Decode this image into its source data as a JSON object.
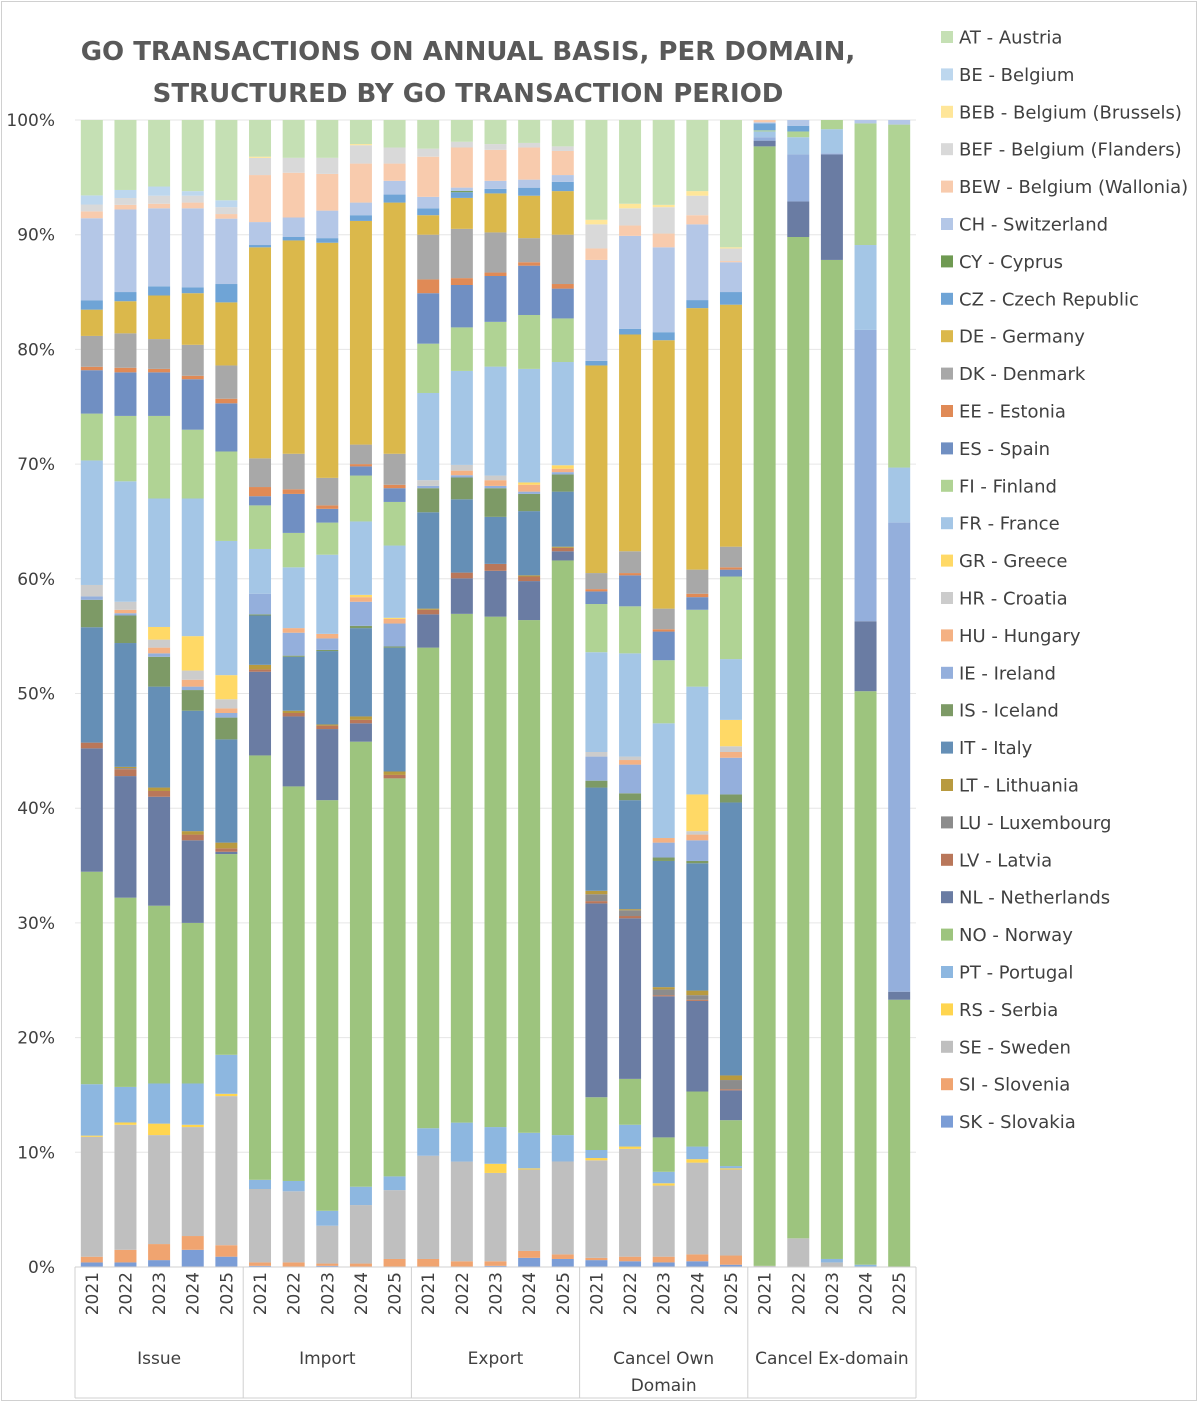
{
  "chart_data": {
    "type": "bar",
    "stacked": "100%",
    "title": [
      "GO TRANSACTIONS ON ANNUAL BASIS, PER DOMAIN,",
      "STRUCTURED BY GO TRANSACTION PERIOD"
    ],
    "groups": [
      "Issue",
      "Import",
      "Export",
      "Cancel Own Domain",
      "Cancel Ex-domain"
    ],
    "years": [
      "2021",
      "2022",
      "2023",
      "2024",
      "2025"
    ],
    "y_ticks": [
      "0%",
      "10%",
      "20%",
      "30%",
      "40%",
      "50%",
      "60%",
      "70%",
      "80%",
      "90%",
      "100%"
    ],
    "ylim": [
      0,
      100
    ],
    "grid": true,
    "legend_position": "right",
    "series": [
      {
        "name": "SK - Slovakia",
        "color": "#7b9dd6",
        "values": [
          0.4,
          0.4,
          0.6,
          1.5,
          0.9,
          0.1,
          0,
          0.1,
          0,
          0,
          0,
          0,
          0.1,
          0.8,
          0.7,
          0.6,
          0.5,
          0.4,
          0.5,
          0.2,
          0,
          0,
          0,
          0,
          0
        ]
      },
      {
        "name": "SI - Slovenia",
        "color": "#f0a470",
        "values": [
          0.5,
          1.1,
          1.4,
          1.2,
          1.0,
          0.3,
          0.4,
          0.2,
          0.3,
          0.7,
          0.7,
          0.5,
          0.4,
          0.6,
          0.4,
          0.2,
          0.4,
          0.5,
          0.6,
          0.8,
          0,
          0,
          0,
          0,
          0
        ]
      },
      {
        "name": "SE - Sweden",
        "color": "#bfbfbf",
        "values": [
          10.5,
          10.9,
          9.5,
          9.5,
          13.0,
          6.4,
          6.2,
          3.3,
          5.1,
          6.0,
          9.0,
          8.7,
          7.7,
          7.1,
          8.1,
          8.5,
          9.4,
          6.2,
          8.0,
          7.5,
          0.1,
          2.5,
          0.4,
          0,
          0
        ]
      },
      {
        "name": "RS - Serbia",
        "color": "#ffd54f",
        "values": [
          0.1,
          0.2,
          1.0,
          0.2,
          0.2,
          0,
          0,
          0,
          0,
          0,
          0,
          0,
          0.8,
          0.1,
          0,
          0.2,
          0.2,
          0.2,
          0.3,
          0.1,
          0,
          0,
          0,
          0,
          0
        ]
      },
      {
        "name": "PT - Portugal",
        "color": "#8db7e0",
        "values": [
          4.5,
          3.1,
          3.5,
          3.6,
          3.4,
          0.8,
          0.9,
          1.3,
          1.6,
          1.2,
          2.4,
          3.4,
          3.2,
          3.1,
          2.3,
          0.7,
          1.9,
          1.0,
          1.1,
          0.2,
          0,
          0,
          0.3,
          0.2,
          0
        ]
      },
      {
        "name": "NO - Norway",
        "color": "#9dc47e",
        "values": [
          18.6,
          16.5,
          15.5,
          14.0,
          17.5,
          37.0,
          34.4,
          35.8,
          38.8,
          34.7,
          41.9,
          44.4,
          44.5,
          44.7,
          50.1,
          4.6,
          4.0,
          3.0,
          4.8,
          4.0,
          97.6,
          87.3,
          87.1,
          50.0,
          23.3
        ]
      },
      {
        "name": "NL - Netherlands",
        "color": "#6a7ca3",
        "values": [
          10.8,
          10.6,
          9.5,
          7.2,
          0.2,
          7.3,
          6.1,
          6.2,
          1.6,
          0,
          2.9,
          3.1,
          4.0,
          3.4,
          0.8,
          16.9,
          14.0,
          12.3,
          7.9,
          2.6,
          0.5,
          3.1,
          9.2,
          6.1,
          0.7
        ]
      },
      {
        "name": "LV - Latvia",
        "color": "#b9775a",
        "values": [
          0.5,
          0.6,
          0.5,
          0.5,
          0.3,
          0.2,
          0.3,
          0.3,
          0.3,
          0.3,
          0.4,
          0.5,
          0.6,
          0.4,
          0.3,
          0.2,
          0.2,
          0.1,
          0.1,
          0.1,
          0,
          0,
          0,
          0,
          0
        ]
      },
      {
        "name": "LU - Luxembourg",
        "color": "#8c8c8c",
        "values": [
          0,
          0.1,
          0,
          0,
          0,
          0,
          0,
          0,
          0,
          0,
          0,
          0,
          0,
          0,
          0,
          0.6,
          0.5,
          0.5,
          0.4,
          0.8,
          0,
          0,
          0,
          0,
          0
        ]
      },
      {
        "name": "LT - Lithuania",
        "color": "#b89a3f",
        "values": [
          0,
          0.1,
          0.3,
          0.3,
          0.5,
          0.4,
          0.2,
          0.1,
          0.3,
          0.3,
          0.1,
          0,
          0,
          0.1,
          0.1,
          0.3,
          0.1,
          0.2,
          0.4,
          0.4,
          0,
          0,
          0,
          0,
          0
        ]
      },
      {
        "name": "IT - Italy",
        "color": "#658fb6",
        "values": [
          10.1,
          10.8,
          8.8,
          10.5,
          9.0,
          4.3,
          4.7,
          6.4,
          7.7,
          10.8,
          8.4,
          6.4,
          4.1,
          5.6,
          4.8,
          9.0,
          9.5,
          11.0,
          11.1,
          23.8,
          0,
          0,
          0,
          0,
          0
        ]
      },
      {
        "name": "IS - Iceland",
        "color": "#7d9a66",
        "values": [
          2.4,
          2.4,
          2.6,
          1.8,
          1.9,
          0.1,
          0.1,
          0.1,
          0.2,
          0.1,
          2.1,
          1.9,
          2.5,
          1.5,
          1.5,
          0.6,
          0.6,
          0.3,
          0.2,
          0.7,
          0,
          0,
          0,
          0,
          0
        ]
      },
      {
        "name": "IE - Ireland",
        "color": "#94afdc",
        "values": [
          0.3,
          0.2,
          0.3,
          0.3,
          0.4,
          1.8,
          2.0,
          1.0,
          2.1,
          2.0,
          0.2,
          0.2,
          0.2,
          0.2,
          0.2,
          2.1,
          2.5,
          1.3,
          1.8,
          3.2,
          0.3,
          4.1,
          0.1,
          25.4,
          40.9
        ]
      },
      {
        "name": "HU - Hungary",
        "color": "#f4b183",
        "values": [
          0,
          0.3,
          0.5,
          0.6,
          0.4,
          0,
          0.4,
          0.4,
          0.4,
          0.4,
          0,
          0.4,
          0.5,
          0.6,
          0.3,
          0,
          0.4,
          0.4,
          0.5,
          0.5,
          0,
          0,
          0,
          0,
          0
        ]
      },
      {
        "name": "HR - Croatia",
        "color": "#cccccc",
        "values": [
          1.0,
          0.7,
          0.7,
          0.8,
          0.8,
          0,
          0,
          0,
          0,
          0,
          0.5,
          0.5,
          0.4,
          0,
          0,
          0.4,
          0.3,
          0,
          0.3,
          0.5,
          0,
          0,
          0,
          0,
          0
        ]
      },
      {
        "name": "GR - Greece",
        "color": "#ffd966",
        "values": [
          0,
          0,
          1.1,
          3.0,
          2.1,
          0,
          0,
          0,
          0.2,
          0.1,
          0,
          0,
          0,
          0.2,
          0.3,
          0,
          0,
          0,
          3.2,
          2.3,
          0,
          0,
          0,
          0,
          0
        ]
      },
      {
        "name": "FR - France",
        "color": "#a4c6e6",
        "values": [
          10.9,
          10.5,
          11.2,
          12.0,
          11.7,
          3.9,
          5.3,
          6.9,
          6.4,
          6.3,
          7.6,
          8.2,
          9.5,
          9.9,
          9.0,
          8.7,
          9.0,
          10.0,
          9.4,
          5.3,
          0.5,
          1.5,
          2.1,
          7.4,
          4.8
        ]
      },
      {
        "name": "FI - Finland",
        "color": "#b0d394",
        "values": [
          4.1,
          5.7,
          7.2,
          6.0,
          7.8,
          3.8,
          3.0,
          2.8,
          4.0,
          3.8,
          4.3,
          3.8,
          3.9,
          4.7,
          3.8,
          4.2,
          4.1,
          5.5,
          6.7,
          7.2,
          0.1,
          0.5,
          0.8,
          10.6,
          29.9
        ]
      },
      {
        "name": "ES - Spain",
        "color": "#708fc2",
        "values": [
          3.8,
          3.8,
          3.8,
          4.4,
          4.2,
          0.8,
          3.4,
          1.2,
          0.8,
          1.2,
          4.4,
          3.7,
          4.0,
          4.3,
          2.6,
          1.1,
          2.7,
          2.5,
          1.1,
          0.6,
          0,
          0,
          0,
          0,
          0
        ]
      },
      {
        "name": "EE - Estonia",
        "color": "#e08a56",
        "values": [
          0.3,
          0.4,
          0.3,
          0.3,
          0.4,
          0.8,
          0.4,
          0.3,
          0.2,
          0.3,
          1.2,
          0.6,
          0.3,
          0.3,
          0.4,
          0.2,
          0.2,
          0.2,
          0.3,
          0.2,
          0,
          0,
          0,
          0,
          0
        ]
      },
      {
        "name": "DK - Denmark",
        "color": "#a8a8a8",
        "values": [
          2.7,
          3.0,
          2.6,
          2.7,
          2.9,
          2.5,
          3.1,
          2.4,
          1.7,
          2.7,
          3.9,
          4.3,
          3.5,
          2.1,
          4.3,
          1.4,
          1.9,
          1.8,
          2.1,
          1.8,
          0,
          0,
          0,
          0,
          0
        ]
      },
      {
        "name": "DE - Germany",
        "color": "#dbb84b",
        "values": [
          2.3,
          2.8,
          3.8,
          4.5,
          5.5,
          18.4,
          18.6,
          20.5,
          19.5,
          21.9,
          1.7,
          2.7,
          3.4,
          3.7,
          3.8,
          18.1,
          18.9,
          23.4,
          22.8,
          21.1,
          0,
          0,
          0,
          0,
          0
        ]
      },
      {
        "name": "CZ - Czech Republic",
        "color": "#6fa4d6",
        "values": [
          0.8,
          0.8,
          0.8,
          0.5,
          1.6,
          0.2,
          0.3,
          0.4,
          0.5,
          0.7,
          0.6,
          0.5,
          0.4,
          0.7,
          0.8,
          0.4,
          0.5,
          0.7,
          0.7,
          1.1,
          0.6,
          0.5,
          0,
          0,
          0
        ]
      },
      {
        "name": "CY - Cyprus",
        "color": "#6f9a52",
        "values": [
          0,
          0,
          0,
          0,
          0,
          0,
          0,
          0,
          0,
          0,
          0,
          0.1,
          0,
          0,
          0,
          0,
          0,
          0,
          0,
          0,
          0,
          0,
          0,
          0,
          0
        ]
      },
      {
        "name": "CH - Switzerland",
        "color": "#b4c7e7",
        "values": [
          7.2,
          7.2,
          6.8,
          6.9,
          5.7,
          2.0,
          1.7,
          2.4,
          1.1,
          1.2,
          1.0,
          0.3,
          0.7,
          0.7,
          0.6,
          8.8,
          8.1,
          7.4,
          6.6,
          2.6,
          0.1,
          0.5,
          0,
          0.3,
          0.4
        ]
      },
      {
        "name": "BEW - Belgium (Wallonia)",
        "color": "#f8cbad",
        "values": [
          0.6,
          0.4,
          0.4,
          0.5,
          0.4,
          4.1,
          3.9,
          3.2,
          3.4,
          1.5,
          3.5,
          3.5,
          2.7,
          2.8,
          2.1,
          1.0,
          0.9,
          1.2,
          0.8,
          0.1,
          0.2,
          0,
          0,
          0,
          0
        ]
      },
      {
        "name": "BEF - Belgium (Flanders)",
        "color": "#d9d9d9",
        "values": [
          0.6,
          0.6,
          0.7,
          0.6,
          0.6,
          1.5,
          1.3,
          1.4,
          1.6,
          1.4,
          0.7,
          0.5,
          0.5,
          0.4,
          0.4,
          2.1,
          1.5,
          2.3,
          1.7,
          1.1,
          0,
          0,
          0,
          0,
          0
        ]
      },
      {
        "name": "BEB - Belgium (Brussels)",
        "color": "#ffe699",
        "values": [
          0,
          0,
          0,
          0,
          0,
          0.1,
          0,
          0,
          0.1,
          0,
          0,
          0,
          0,
          0,
          0,
          0.4,
          0.4,
          0.2,
          0.4,
          0.1,
          0,
          0,
          0,
          0,
          0
        ]
      },
      {
        "name": "BE - Belgium",
        "color": "#bdd7ee",
        "values": [
          0.8,
          0.7,
          0.8,
          0.4,
          0.6,
          0,
          0,
          0,
          0,
          0,
          0,
          0,
          0,
          0,
          0,
          0,
          0,
          0,
          0,
          0,
          0,
          0,
          0,
          0,
          0
        ]
      },
      {
        "name": "AT - Austria",
        "color": "#c5e0b4",
        "values": [
          6.6,
          6.1,
          5.8,
          6.2,
          7.0,
          3.2,
          3.3,
          3.3,
          2.1,
          2.4,
          2.5,
          1.9,
          2.1,
          2.0,
          2.3,
          8.7,
          7.3,
          7.4,
          6.2,
          11.1,
          0,
          0,
          0,
          0,
          0
        ]
      }
    ]
  }
}
